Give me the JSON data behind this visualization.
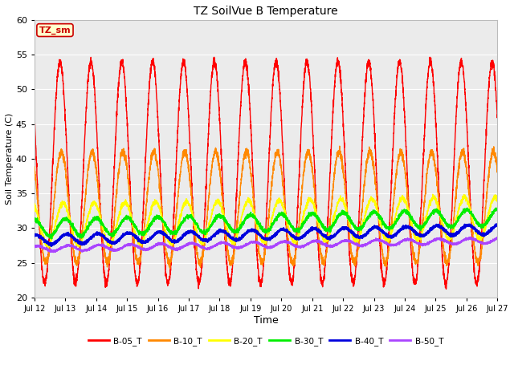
{
  "title": "TZ SoilVue B Temperature",
  "xlabel": "Time",
  "ylabel": "Soil Temperature (C)",
  "ylim": [
    20,
    60
  ],
  "yticks": [
    20,
    25,
    30,
    35,
    40,
    45,
    50,
    55,
    60
  ],
  "xtick_labels": [
    "Jul 12",
    "Jul 13",
    "Jul 14",
    "Jul 15",
    "Jul 16",
    "Jul 17",
    "Jul 18",
    "Jul 19",
    "Jul 20",
    "Jul 21",
    "Jul 22",
    "Jul 23",
    "Jul 24",
    "Jul 25",
    "Jul 26",
    "Jul 27"
  ],
  "bg_color": "#ebebeb",
  "grid_color": "#ffffff",
  "annotation_text": "TZ_sm",
  "annotation_color": "#cc0000",
  "annotation_bg": "#ffffcc",
  "annotation_border": "#cc0000",
  "series": [
    {
      "label": "B-05_T",
      "color": "#ff0000",
      "lw": 1.0
    },
    {
      "label": "B-10_T",
      "color": "#ff8800",
      "lw": 1.0
    },
    {
      "label": "B-20_T",
      "color": "#ffff00",
      "lw": 1.0
    },
    {
      "label": "B-30_T",
      "color": "#00ee00",
      "lw": 1.2
    },
    {
      "label": "B-40_T",
      "color": "#0000dd",
      "lw": 1.5
    },
    {
      "label": "B-50_T",
      "color": "#aa44ff",
      "lw": 1.2
    }
  ]
}
